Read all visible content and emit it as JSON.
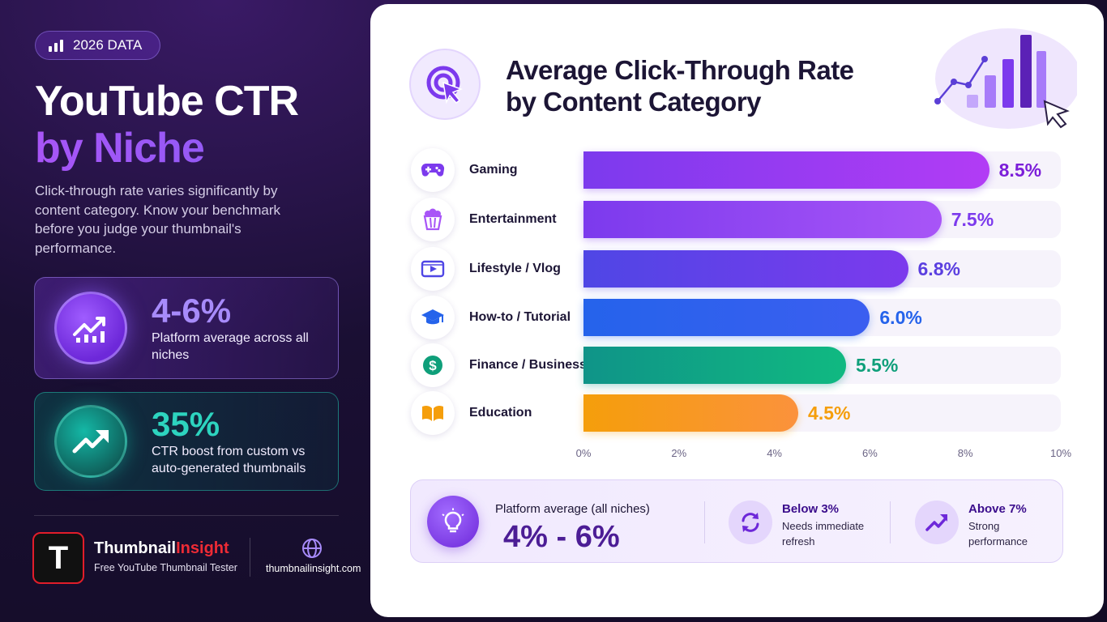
{
  "badge": {
    "label": "2026 DATA",
    "icon": "bar-chart-icon"
  },
  "headline": {
    "line1": "YouTube CTR",
    "line2": "by Niche"
  },
  "intro": "Click-through rate varies significantly by content category. Know your benchmark before you judge your thumbnail's performance.",
  "stats": [
    {
      "value": "4-6%",
      "desc": "Platform average across all niches",
      "icon": "trending-chart-icon",
      "color": "#a78bfa"
    },
    {
      "value": "35%",
      "desc": "CTR boost from custom vs auto-generated thumbnails",
      "icon": "trend-up-arrow-icon",
      "color": "#2dd4bf"
    }
  ],
  "brand": {
    "name_part1": "Thumbnail",
    "name_part2": "Insight",
    "tagline": "Free YouTube Thumbnail Tester",
    "logo_letter": "T",
    "website": "thumbnailinsight.com"
  },
  "chart_title": {
    "line1": "Average Click-Through Rate",
    "line2": "by Content Category"
  },
  "chart_data": {
    "type": "bar",
    "orientation": "horizontal",
    "title": "Average Click-Through Rate by Content Category",
    "categories": [
      "Gaming",
      "Entertainment",
      "Lifestyle / Vlog",
      "How-to / Tutorial",
      "Finance / Business",
      "Education"
    ],
    "values": [
      8.5,
      7.5,
      6.8,
      6.0,
      5.5,
      4.5
    ],
    "value_labels": [
      "8.5%",
      "7.5%",
      "6.8%",
      "6.0%",
      "5.5%",
      "4.5%"
    ],
    "icons": [
      "gamepad-icon",
      "popcorn-icon",
      "video-play-icon",
      "graduation-cap-icon",
      "dollar-icon",
      "open-book-icon"
    ],
    "colors": [
      [
        "#7c3aed",
        "#b23cf5"
      ],
      [
        "#7c3aed",
        "#a855f7"
      ],
      [
        "#4f46e5",
        "#7c3aed"
      ],
      [
        "#2563eb",
        "#3b5ef0"
      ],
      [
        "#0f9488",
        "#10b981"
      ],
      [
        "#f59e0b",
        "#fb923c"
      ]
    ],
    "label_colors": [
      "#7c1fd9",
      "#7c3aed",
      "#5b3fe0",
      "#2563eb",
      "#0f9f7a",
      "#f59e0b"
    ],
    "xlim": [
      0,
      10
    ],
    "x_ticks": [
      "0%",
      "2%",
      "4%",
      "6%",
      "8%",
      "10%"
    ],
    "grid": false,
    "legend": "none"
  },
  "benchmarks": {
    "average_label": "Platform average (all niches)",
    "average_value": "4% - 6%",
    "average_icon": "lightbulb-icon",
    "below": {
      "title": "Below 3%",
      "desc": "Needs immediate refresh",
      "icon": "refresh-icon"
    },
    "above": {
      "title": "Above 7%",
      "desc": "Strong performance",
      "icon": "trend-up-arrow-icon"
    }
  }
}
